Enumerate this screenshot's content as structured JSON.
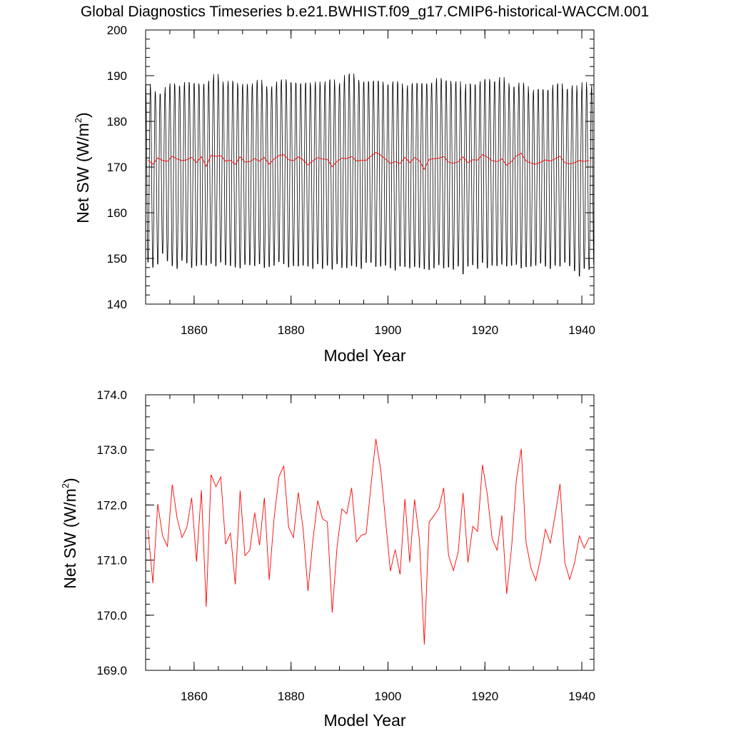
{
  "title": "Global Diagnostics Timeseries b.e21.BWHIST.f09_g17.CMIP6-historical-WACCM.001",
  "colors": {
    "monthly": "#000000",
    "annual": "#ff0000"
  },
  "chart_data": [
    {
      "type": "line",
      "xlabel": "Model Year",
      "ylabel_main": "Net SW (W/m",
      "ylabel_sup": "2",
      "ylabel_tail": ")",
      "xlim": [
        1850,
        1942.5
      ],
      "ylim": [
        140,
        200
      ],
      "xticks": [
        1860,
        1880,
        1900,
        1920,
        1940
      ],
      "yticks": [
        "140",
        "150",
        "160",
        "170",
        "180",
        "190",
        "200"
      ],
      "yminor_step": 2,
      "xminor_step": 5,
      "series": [
        {
          "kind": "monthly_seasonal_cycle",
          "color": "#000000",
          "start_year": 1850,
          "annual_max_approx": [
            188.9,
            187.3,
            186.6,
            186.6,
            188.2,
            189.0,
            188.4,
            188.3,
            189.3,
            188.9,
            189.0,
            188.6,
            188.9,
            189.6,
            191.1,
            189.4,
            188.5,
            189.6,
            189.1,
            188.2,
            188.9,
            188.2,
            189.0,
            189.8,
            188.4,
            187.6,
            188.4,
            189.4,
            189.9,
            189.2,
            189.1,
            189.0,
            188.8,
            189.2,
            188.4,
            189.4,
            188.4,
            189.5,
            189.9,
            188.3,
            189.1,
            190.9,
            191.2,
            189.8,
            189.1,
            189.4,
            189.3,
            189.6,
            189.4,
            188.5,
            188.8,
            189.5,
            189.0,
            187.7,
            188.6,
            189.1,
            188.9,
            189.0,
            188.7,
            189.2,
            190.2,
            189.5,
            189.6,
            188.8,
            189.5,
            187.1,
            188.9,
            188.8,
            188.5,
            189.5,
            190.0,
            189.3,
            189.4,
            190.4,
            189.1,
            188.0,
            188.3,
            189.2,
            188.4,
            186.6,
            187.6,
            187.7,
            187.4,
            187.5,
            188.7,
            189.0,
            187.5,
            187.8,
            188.6,
            187.0,
            189.3,
            187.3,
            188.6
          ],
          "annual_min_approx": [
            148.5,
            147.4,
            148.1,
            150.5,
            148.8,
            147.7,
            147.1,
            148.9,
            148.3,
            147.3,
            147.7,
            147.9,
            147.8,
            148.2,
            147.6,
            148.5,
            147.9,
            147.7,
            147.4,
            147.2,
            148.0,
            147.9,
            147.7,
            148.1,
            147.3,
            147.5,
            147.8,
            148.6,
            148.1,
            147.4,
            147.7,
            147.6,
            147.8,
            147.6,
            147.1,
            148.1,
            147.1,
            147.8,
            146.9,
            148.1,
            147.3,
            147.2,
            147.7,
            147.5,
            147.1,
            148.4,
            148.4,
            147.5,
            147.6,
            147.8,
            147.2,
            146.7,
            147.6,
            147.5,
            147.2,
            147.5,
            147.3,
            147.0,
            146.8,
            147.2,
            147.9,
            147.2,
            147.4,
            146.9,
            147.6,
            145.9,
            147.6,
            147.9,
            147.1,
            148.4,
            147.2,
            147.8,
            147.7,
            148.0,
            147.6,
            147.8,
            148.0,
            147.2,
            147.5,
            147.6,
            147.8,
            148.3,
            147.6,
            147.1,
            147.8,
            147.6,
            148.5,
            147.7,
            146.6,
            145.4,
            147.1,
            146.9,
            147.9
          ]
        },
        {
          "kind": "annual_mean",
          "color": "#ff0000",
          "ref": "annual_means"
        }
      ]
    },
    {
      "type": "line",
      "xlabel": "Model Year",
      "ylabel_main": "Net SW (W/m",
      "ylabel_sup": "2",
      "ylabel_tail": ")",
      "xlim": [
        1850,
        1942.5
      ],
      "ylim": [
        169,
        174
      ],
      "xticks": [
        1860,
        1880,
        1900,
        1920,
        1940
      ],
      "yticks": [
        "169.0",
        "170.0",
        "171.0",
        "172.0",
        "173.0",
        "174.0"
      ],
      "yminor_step": 0.2,
      "xminor_step": 5,
      "series": [
        {
          "kind": "annual_mean",
          "color": "#ff0000",
          "ref": "annual_means"
        }
      ]
    }
  ],
  "annual_means": {
    "x": [
      1850.5,
      1851.5,
      1852.5,
      1853.5,
      1854.5,
      1855.5,
      1856.5,
      1857.5,
      1858.5,
      1859.5,
      1860.5,
      1861.5,
      1862.5,
      1863.5,
      1864.5,
      1865.5,
      1866.5,
      1867.5,
      1868.5,
      1869.5,
      1870.5,
      1871.5,
      1872.5,
      1873.5,
      1874.5,
      1875.5,
      1876.5,
      1877.5,
      1878.5,
      1879.5,
      1880.5,
      1881.5,
      1882.5,
      1883.5,
      1884.5,
      1885.5,
      1886.5,
      1887.5,
      1888.5,
      1889.5,
      1890.5,
      1891.5,
      1892.5,
      1893.5,
      1894.5,
      1895.5,
      1896.5,
      1897.5,
      1898.5,
      1899.5,
      1900.5,
      1901.5,
      1902.5,
      1903.5,
      1904.5,
      1905.5,
      1906.5,
      1907.5,
      1908.5,
      1909.5,
      1910.5,
      1911.5,
      1912.5,
      1913.5,
      1914.5,
      1915.5,
      1916.5,
      1917.5,
      1918.5,
      1919.5,
      1920.5,
      1921.5,
      1922.5,
      1923.5,
      1924.5,
      1925.5,
      1926.5,
      1927.5,
      1928.5,
      1929.5,
      1930.5,
      1931.5,
      1932.5,
      1933.5,
      1934.5,
      1935.5,
      1936.5,
      1937.5,
      1938.5,
      1939.5,
      1940.5,
      1941.5
    ],
    "y": [
      171.55,
      170.58,
      172.02,
      171.44,
      171.25,
      172.37,
      171.76,
      171.41,
      171.59,
      172.13,
      170.97,
      172.27,
      170.15,
      172.55,
      172.33,
      172.51,
      171.29,
      171.49,
      170.56,
      172.26,
      171.08,
      171.18,
      171.86,
      171.27,
      172.13,
      170.64,
      171.75,
      172.51,
      172.71,
      171.6,
      171.41,
      172.23,
      171.56,
      170.44,
      171.35,
      172.08,
      171.75,
      171.69,
      170.05,
      171.24,
      171.93,
      171.84,
      172.31,
      171.33,
      171.45,
      171.48,
      172.36,
      173.2,
      172.64,
      171.73,
      170.8,
      171.19,
      170.74,
      172.11,
      170.96,
      172.1,
      171.36,
      169.47,
      171.69,
      171.81,
      171.94,
      172.31,
      171.09,
      170.81,
      171.15,
      172.22,
      170.96,
      171.61,
      171.52,
      172.73,
      172.19,
      171.39,
      171.18,
      171.81,
      170.39,
      171.22,
      172.46,
      173.02,
      171.32,
      170.86,
      170.63,
      171.04,
      171.56,
      171.31,
      171.82,
      172.38,
      170.95,
      170.65,
      170.95,
      171.44,
      171.22,
      171.41
    ]
  }
}
